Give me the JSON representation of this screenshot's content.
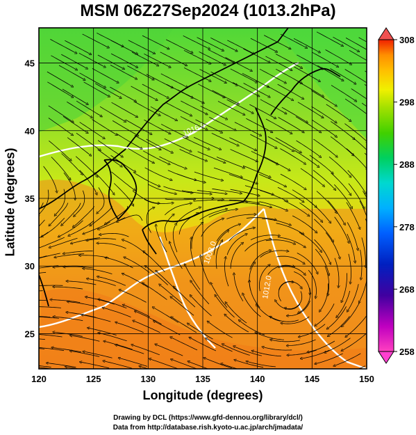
{
  "title": "MSM 06Z27Sep2024 (1013.2hPa)",
  "axes": {
    "xlabel": "Longitude (degrees)",
    "ylabel": "Latitude  (degrees)",
    "xlim": [
      120,
      150
    ],
    "ylim": [
      22.4,
      47.6
    ],
    "xticks": [
      "120",
      "125",
      "130",
      "135",
      "140",
      "145",
      "150"
    ],
    "yticks": [
      "25",
      "30",
      "35",
      "40",
      "45"
    ],
    "grid": true
  },
  "colorbar": {
    "min": 258,
    "max": 308,
    "ticks": [
      "308",
      "298",
      "288",
      "278",
      "268",
      "258"
    ],
    "colors": [
      "#ff40c0",
      "#c000c0",
      "#4000a0",
      "#0020c0",
      "#0060ff",
      "#00b0ff",
      "#00d8d0",
      "#00d060",
      "#40d000",
      "#a0e000",
      "#f0f000",
      "#ffc000",
      "#ff9000",
      "#ff6000",
      "#f02000"
    ]
  },
  "isobar_labels": [
    "1016.0",
    "1008.0",
    "1012.0"
  ],
  "credits": {
    "line1": "Drawing by DCL (https://www.gfd-dennou.org/library/dcl/)",
    "line2": "Data from http://database.rish.kyoto-u.ac.jp/arch/jmadata/"
  }
}
